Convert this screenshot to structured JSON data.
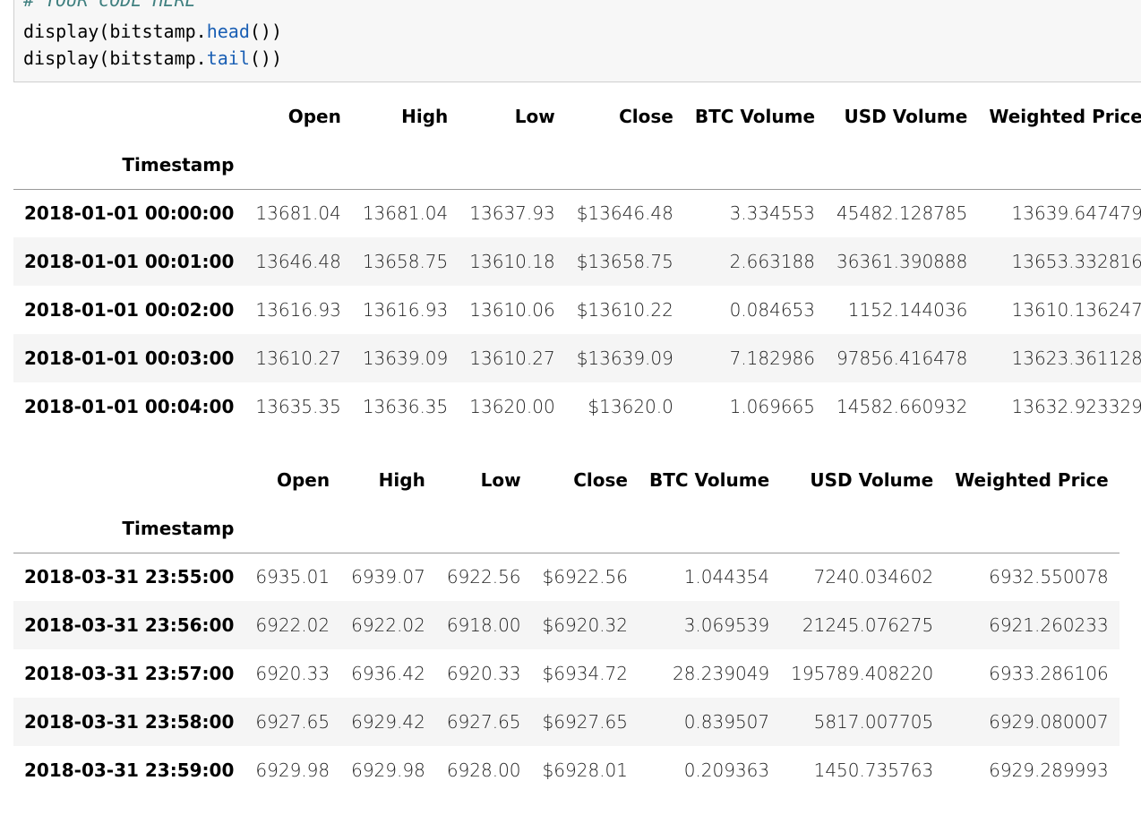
{
  "code_cell": {
    "comment": "# YOUR CODE HERE",
    "line1": {
      "prefix": "display(bitstamp.",
      "fn": "head",
      "suffix": "())"
    },
    "line2": {
      "prefix": "display(bitstamp.",
      "fn": "tail",
      "suffix": "())"
    }
  },
  "columns": [
    "Open",
    "High",
    "Low",
    "Close",
    "BTC Volume",
    "USD Volume",
    "Weighted Price"
  ],
  "index_name": "Timestamp",
  "head": {
    "rows": [
      {
        "ts": "2018-01-01 00:00:00",
        "vals": [
          "13681.04",
          "13681.04",
          "13637.93",
          "$13646.48",
          "3.334553",
          "45482.128785",
          "13639.647479"
        ]
      },
      {
        "ts": "2018-01-01 00:01:00",
        "vals": [
          "13646.48",
          "13658.75",
          "13610.18",
          "$13658.75",
          "2.663188",
          "36361.390888",
          "13653.332816"
        ]
      },
      {
        "ts": "2018-01-01 00:02:00",
        "vals": [
          "13616.93",
          "13616.93",
          "13610.06",
          "$13610.22",
          "0.084653",
          "1152.144036",
          "13610.136247"
        ]
      },
      {
        "ts": "2018-01-01 00:03:00",
        "vals": [
          "13610.27",
          "13639.09",
          "13610.27",
          "$13639.09",
          "7.182986",
          "97856.416478",
          "13623.361128"
        ]
      },
      {
        "ts": "2018-01-01 00:04:00",
        "vals": [
          "13635.35",
          "13636.35",
          "13620.00",
          "$13620.0",
          "1.069665",
          "14582.660932",
          "13632.923329"
        ]
      }
    ]
  },
  "tail": {
    "rows": [
      {
        "ts": "2018-03-31 23:55:00",
        "vals": [
          "6935.01",
          "6939.07",
          "6922.56",
          "$6922.56",
          "1.044354",
          "7240.034602",
          "6932.550078"
        ]
      },
      {
        "ts": "2018-03-31 23:56:00",
        "vals": [
          "6922.02",
          "6922.02",
          "6918.00",
          "$6920.32",
          "3.069539",
          "21245.076275",
          "6921.260233"
        ]
      },
      {
        "ts": "2018-03-31 23:57:00",
        "vals": [
          "6920.33",
          "6936.42",
          "6920.33",
          "$6934.72",
          "28.239049",
          "195789.408220",
          "6933.286106"
        ]
      },
      {
        "ts": "2018-03-31 23:58:00",
        "vals": [
          "6927.65",
          "6929.42",
          "6927.65",
          "$6927.65",
          "0.839507",
          "5817.007705",
          "6929.080007"
        ]
      },
      {
        "ts": "2018-03-31 23:59:00",
        "vals": [
          "6929.98",
          "6929.98",
          "6928.00",
          "$6928.01",
          "0.209363",
          "1450.735763",
          "6929.289993"
        ]
      }
    ]
  }
}
